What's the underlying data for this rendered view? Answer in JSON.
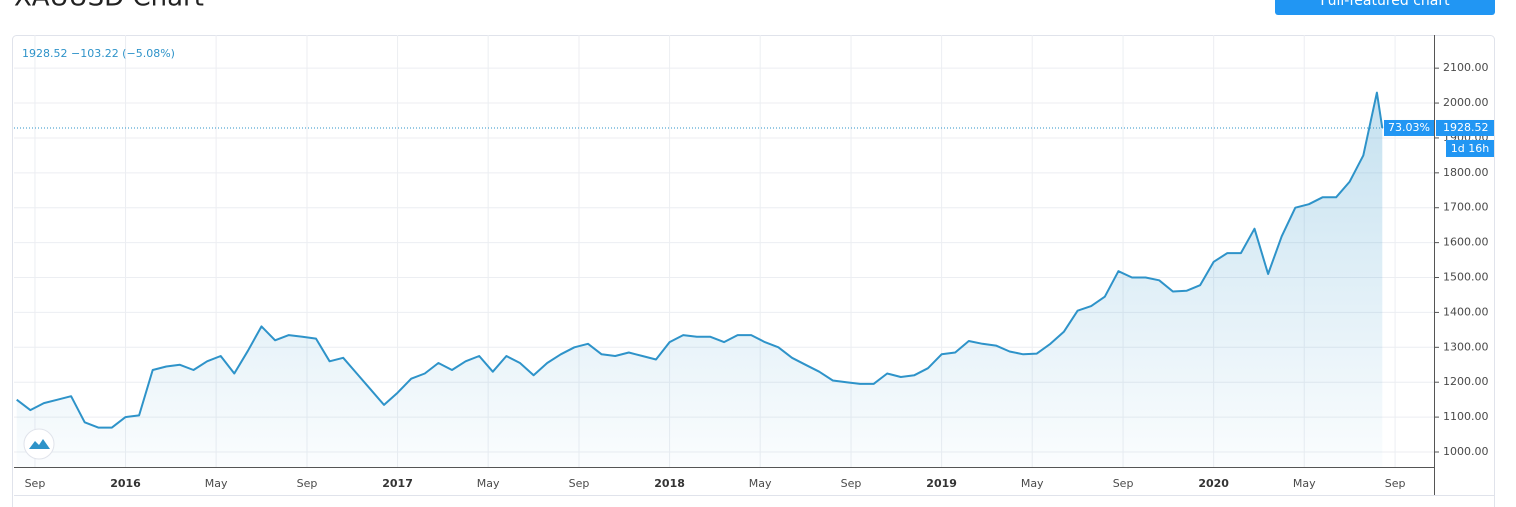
{
  "chart_data": {
    "type": "area",
    "title": "XAUUSD Chart",
    "button": "Full-featured chart",
    "legend_text": "1928.52 −103.22 (−5.08%)",
    "change_label": "73.03%",
    "countdown_label": "1d 16h",
    "x": [
      2015.6,
      2015.65,
      2015.7,
      2015.75,
      2015.8,
      2015.85,
      2015.9,
      2015.95,
      2016.0,
      2016.05,
      2016.1,
      2016.15,
      2016.2,
      2016.25,
      2016.3,
      2016.35,
      2016.4,
      2016.45,
      2016.5,
      2016.55,
      2016.6,
      2016.65,
      2016.7,
      2016.75,
      2016.8,
      2016.85,
      2016.9,
      2016.95,
      2017.0,
      2017.05,
      2017.1,
      2017.15,
      2017.2,
      2017.25,
      2017.3,
      2017.35,
      2017.4,
      2017.45,
      2017.5,
      2017.55,
      2017.6,
      2017.65,
      2017.7,
      2017.75,
      2017.8,
      2017.85,
      2017.9,
      2017.95,
      2018.0,
      2018.05,
      2018.1,
      2018.15,
      2018.2,
      2018.25,
      2018.3,
      2018.35,
      2018.4,
      2018.45,
      2018.5,
      2018.55,
      2018.6,
      2018.65,
      2018.7,
      2018.75,
      2018.8,
      2018.85,
      2018.9,
      2018.95,
      2019.0,
      2019.05,
      2019.1,
      2019.15,
      2019.2,
      2019.25,
      2019.3,
      2019.35,
      2019.4,
      2019.45,
      2019.5,
      2019.55,
      2019.6,
      2019.65,
      2019.7,
      2019.75,
      2019.8,
      2019.85,
      2019.9,
      2019.95,
      2020.0,
      2020.05,
      2020.1,
      2020.15,
      2020.2,
      2020.25,
      2020.3,
      2020.35,
      2020.4,
      2020.45,
      2020.5,
      2020.55,
      2020.6,
      2020.62
    ],
    "series": [
      {
        "name": "XAUUSD",
        "color": "#2e93c9",
        "values": [
          1150,
          1120,
          1140,
          1150,
          1160,
          1085,
          1070,
          1070,
          1100,
          1105,
          1235,
          1245,
          1250,
          1235,
          1260,
          1275,
          1225,
          1290,
          1360,
          1320,
          1335,
          1330,
          1325,
          1260,
          1270,
          1225,
          1180,
          1135,
          1170,
          1210,
          1225,
          1255,
          1235,
          1260,
          1275,
          1230,
          1275,
          1255,
          1220,
          1255,
          1280,
          1300,
          1310,
          1280,
          1275,
          1285,
          1275,
          1265,
          1315,
          1335,
          1330,
          1330,
          1315,
          1335,
          1335,
          1315,
          1300,
          1270,
          1250,
          1230,
          1205,
          1200,
          1195,
          1195,
          1225,
          1215,
          1220,
          1240,
          1280,
          1285,
          1318,
          1310,
          1305,
          1288,
          1280,
          1282,
          1310,
          1345,
          1405,
          1418,
          1445,
          1518,
          1500,
          1500,
          1492,
          1460,
          1462,
          1478,
          1545,
          1570,
          1570,
          1640,
          1510,
          1618,
          1700,
          1710,
          1730,
          1730,
          1775,
          1850,
          2030,
          1928.52
        ]
      }
    ],
    "xlim": [
      2015.59,
      2020.81
    ],
    "xticks": [
      {
        "value": 2015.667,
        "label": "Sep"
      },
      2016,
      {
        "value": 2016.333,
        "label": "May"
      },
      {
        "value": 2016.667,
        "label": "Sep"
      },
      2017,
      {
        "value": 2017.333,
        "label": "May"
      },
      {
        "value": 2017.667,
        "label": "Sep"
      },
      2018,
      {
        "value": 2018.333,
        "label": "May"
      },
      {
        "value": 2018.667,
        "label": "Sep"
      },
      2019,
      {
        "value": 2019.333,
        "label": "May"
      },
      {
        "value": 2019.667,
        "label": "Sep"
      },
      2020,
      {
        "value": 2020.333,
        "label": "May"
      },
      {
        "value": 2020.667,
        "label": "Sep"
      }
    ],
    "ylim": [
      957,
      2195
    ],
    "yticks": [
      {
        "value": 1000,
        "label": "1000.00"
      },
      {
        "value": 1100,
        "label": "1100.00"
      },
      {
        "value": 1200,
        "label": "1200.00"
      },
      {
        "value": 1300,
        "label": "1300.00"
      },
      {
        "value": 1400,
        "label": "1400.00"
      },
      {
        "value": 1500,
        "label": "1500.00"
      },
      {
        "value": 1600,
        "label": "1600.00"
      },
      {
        "value": 1700,
        "label": "1700.00"
      },
      {
        "value": 1800,
        "label": "1800.00"
      },
      {
        "value": 1900,
        "label": "1900.00"
      },
      {
        "value": 2000,
        "label": "2000.00"
      },
      {
        "value": 2100,
        "label": "2100.00"
      }
    ],
    "grid": true
  }
}
